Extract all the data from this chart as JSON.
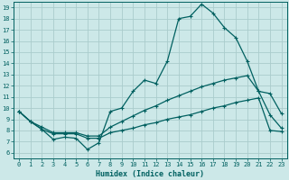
{
  "xlabel": "Humidex (Indice chaleur)",
  "background_color": "#cce8e8",
  "grid_color": "#aacccc",
  "line_color": "#006060",
  "xlim": [
    -0.5,
    23.5
  ],
  "ylim": [
    5.5,
    19.5
  ],
  "xticks": [
    0,
    1,
    2,
    3,
    4,
    5,
    6,
    7,
    8,
    9,
    10,
    11,
    12,
    13,
    14,
    15,
    16,
    17,
    18,
    19,
    20,
    21,
    22,
    23
  ],
  "yticks": [
    6,
    7,
    8,
    9,
    10,
    11,
    12,
    13,
    14,
    15,
    16,
    17,
    18,
    19
  ],
  "line1_x": [
    0,
    1,
    2,
    3,
    4,
    5,
    6,
    7,
    8,
    9,
    10,
    11,
    12,
    13,
    14,
    15,
    16,
    17,
    18,
    19,
    20,
    21,
    22,
    23
  ],
  "line1_y": [
    9.7,
    8.8,
    8.1,
    7.2,
    7.4,
    7.3,
    6.3,
    6.9,
    9.7,
    10.0,
    11.5,
    12.5,
    12.2,
    14.2,
    18.0,
    18.2,
    19.3,
    18.5,
    17.2,
    16.3,
    14.2,
    11.5,
    11.3,
    9.5
  ],
  "line2_x": [
    0,
    1,
    2,
    3,
    4,
    5,
    6,
    7,
    8,
    9,
    10,
    11,
    12,
    13,
    14,
    15,
    16,
    17,
    18,
    19,
    20,
    21,
    22,
    23
  ],
  "line2_y": [
    9.7,
    8.8,
    8.3,
    7.8,
    7.8,
    7.8,
    7.5,
    7.5,
    8.3,
    8.8,
    9.3,
    9.8,
    10.2,
    10.7,
    11.1,
    11.5,
    11.9,
    12.2,
    12.5,
    12.7,
    12.9,
    11.5,
    9.4,
    8.2
  ],
  "line3_x": [
    0,
    1,
    2,
    3,
    4,
    5,
    6,
    7,
    8,
    9,
    10,
    11,
    12,
    13,
    14,
    15,
    16,
    17,
    18,
    19,
    20,
    21,
    22,
    23
  ],
  "line3_y": [
    9.7,
    8.8,
    8.1,
    7.7,
    7.7,
    7.7,
    7.3,
    7.3,
    7.8,
    8.0,
    8.2,
    8.5,
    8.7,
    9.0,
    9.2,
    9.4,
    9.7,
    10.0,
    10.2,
    10.5,
    10.7,
    10.9,
    8.0,
    7.9
  ]
}
